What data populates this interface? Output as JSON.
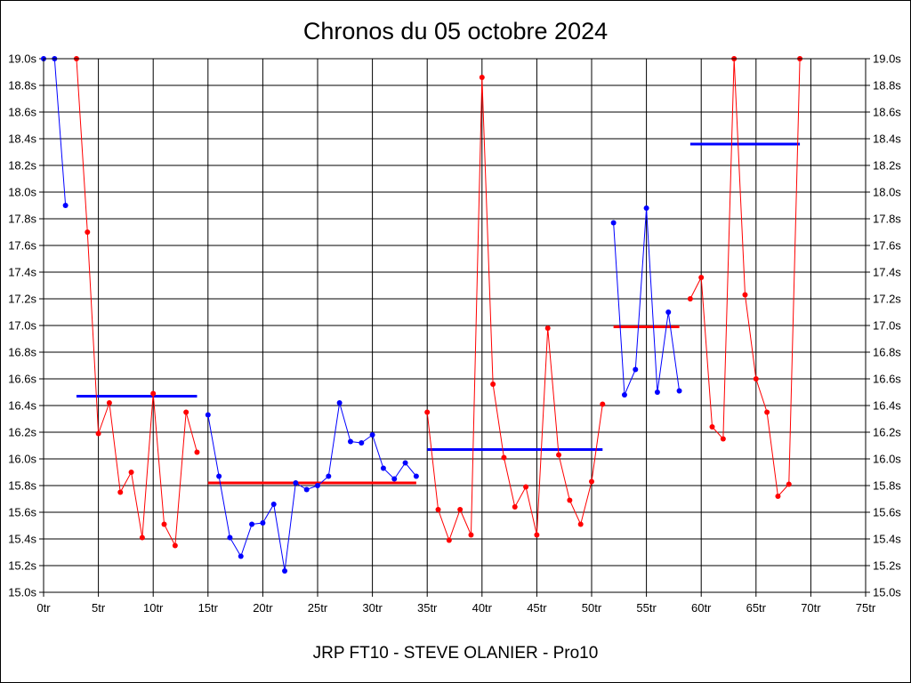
{
  "chart_data": {
    "type": "line",
    "title": "Chronos du 05 octobre 2024",
    "subtitle": "JRP FT10 - STEVE OLANIER - Pro10",
    "xlim": [
      0,
      75
    ],
    "ylim": [
      15.0,
      19.0
    ],
    "x_ticks": [
      {
        "value": 0,
        "label": "0tr"
      },
      {
        "value": 5,
        "label": "5tr"
      },
      {
        "value": 10,
        "label": "10tr"
      },
      {
        "value": 15,
        "label": "15tr"
      },
      {
        "value": 20,
        "label": "20tr"
      },
      {
        "value": 25,
        "label": "25tr"
      },
      {
        "value": 30,
        "label": "30tr"
      },
      {
        "value": 35,
        "label": "35tr"
      },
      {
        "value": 40,
        "label": "40tr"
      },
      {
        "value": 45,
        "label": "45tr"
      },
      {
        "value": 50,
        "label": "50tr"
      },
      {
        "value": 55,
        "label": "55tr"
      },
      {
        "value": 60,
        "label": "60tr"
      },
      {
        "value": 65,
        "label": "65tr"
      },
      {
        "value": 70,
        "label": "70tr"
      },
      {
        "value": 75,
        "label": "75tr"
      }
    ],
    "y_ticks": [
      {
        "value": 15.0,
        "label": "15.0s"
      },
      {
        "value": 15.2,
        "label": "15.2s"
      },
      {
        "value": 15.4,
        "label": "15.4s"
      },
      {
        "value": 15.6,
        "label": "15.6s"
      },
      {
        "value": 15.8,
        "label": "15.8s"
      },
      {
        "value": 16.0,
        "label": "16.0s"
      },
      {
        "value": 16.2,
        "label": "16.2s"
      },
      {
        "value": 16.4,
        "label": "16.4s"
      },
      {
        "value": 16.6,
        "label": "16.6s"
      },
      {
        "value": 16.8,
        "label": "16.8s"
      },
      {
        "value": 17.0,
        "label": "17.0s"
      },
      {
        "value": 17.2,
        "label": "17.2s"
      },
      {
        "value": 17.4,
        "label": "17.4s"
      },
      {
        "value": 17.6,
        "label": "17.6s"
      },
      {
        "value": 17.8,
        "label": "17.8s"
      },
      {
        "value": 18.0,
        "label": "18.0s"
      },
      {
        "value": 18.2,
        "label": "18.2s"
      },
      {
        "value": 18.4,
        "label": "18.4s"
      },
      {
        "value": 18.6,
        "label": "18.6s"
      },
      {
        "value": 18.8,
        "label": "18.8s"
      },
      {
        "value": 19.0,
        "label": "19.0s"
      }
    ],
    "grid": true,
    "series": [
      {
        "color": "#0000ff",
        "points": [
          [
            0,
            19.0
          ],
          [
            1,
            19.0
          ],
          [
            2,
            17.9
          ]
        ]
      },
      {
        "color": "#ff0000",
        "points": [
          [
            3,
            19.0
          ],
          [
            4,
            17.7
          ],
          [
            5,
            16.19
          ],
          [
            6,
            16.42
          ],
          [
            7,
            15.75
          ],
          [
            8,
            15.9
          ],
          [
            9,
            15.41
          ],
          [
            10,
            16.49
          ],
          [
            11,
            15.51
          ],
          [
            12,
            15.35
          ],
          [
            13,
            16.35
          ],
          [
            14,
            16.05
          ]
        ]
      },
      {
        "color": "#0000ff",
        "points": [
          [
            15,
            16.33
          ],
          [
            16,
            15.87
          ],
          [
            17,
            15.41
          ],
          [
            18,
            15.27
          ],
          [
            19,
            15.51
          ],
          [
            20,
            15.52
          ],
          [
            21,
            15.66
          ],
          [
            22,
            15.16
          ],
          [
            23,
            15.82
          ],
          [
            24,
            15.77
          ],
          [
            25,
            15.8
          ],
          [
            26,
            15.87
          ],
          [
            27,
            16.42
          ],
          [
            28,
            16.13
          ],
          [
            29,
            16.12
          ],
          [
            30,
            16.18
          ],
          [
            31,
            15.93
          ],
          [
            32,
            15.85
          ],
          [
            33,
            15.97
          ],
          [
            34,
            15.87
          ]
        ]
      },
      {
        "color": "#ff0000",
        "points": [
          [
            35,
            16.35
          ],
          [
            36,
            15.62
          ],
          [
            37,
            15.39
          ],
          [
            38,
            15.62
          ],
          [
            39,
            15.43
          ],
          [
            40,
            18.86
          ],
          [
            41,
            16.56
          ],
          [
            42,
            16.01
          ],
          [
            43,
            15.64
          ],
          [
            44,
            15.79
          ],
          [
            45,
            15.43
          ],
          [
            46,
            16.98
          ],
          [
            47,
            16.03
          ],
          [
            48,
            15.69
          ],
          [
            49,
            15.51
          ],
          [
            50,
            15.83
          ],
          [
            51,
            16.41
          ]
        ]
      },
      {
        "color": "#0000ff",
        "points": [
          [
            52,
            17.77
          ],
          [
            53,
            16.48
          ],
          [
            54,
            16.67
          ],
          [
            55,
            17.88
          ],
          [
            56,
            16.5
          ],
          [
            57,
            17.1
          ],
          [
            58,
            16.51
          ]
        ]
      },
      {
        "color": "#ff0000",
        "points": [
          [
            59,
            17.2
          ],
          [
            60,
            17.36
          ],
          [
            61,
            16.24
          ],
          [
            62,
            16.15
          ],
          [
            63,
            19.0
          ],
          [
            64,
            17.23
          ],
          [
            65,
            16.6
          ],
          [
            66,
            16.35
          ],
          [
            67,
            15.72
          ],
          [
            68,
            15.81
          ],
          [
            69,
            19.0
          ]
        ]
      }
    ],
    "averages": [
      {
        "color": "#0000ff",
        "x": [
          3,
          14
        ],
        "y": 16.47
      },
      {
        "color": "#ff0000",
        "x": [
          15,
          34
        ],
        "y": 15.82
      },
      {
        "color": "#0000ff",
        "x": [
          35,
          51
        ],
        "y": 16.07
      },
      {
        "color": "#ff0000",
        "x": [
          52,
          58
        ],
        "y": 16.99
      },
      {
        "color": "#0000ff",
        "x": [
          59,
          69
        ],
        "y": 18.36
      }
    ]
  }
}
